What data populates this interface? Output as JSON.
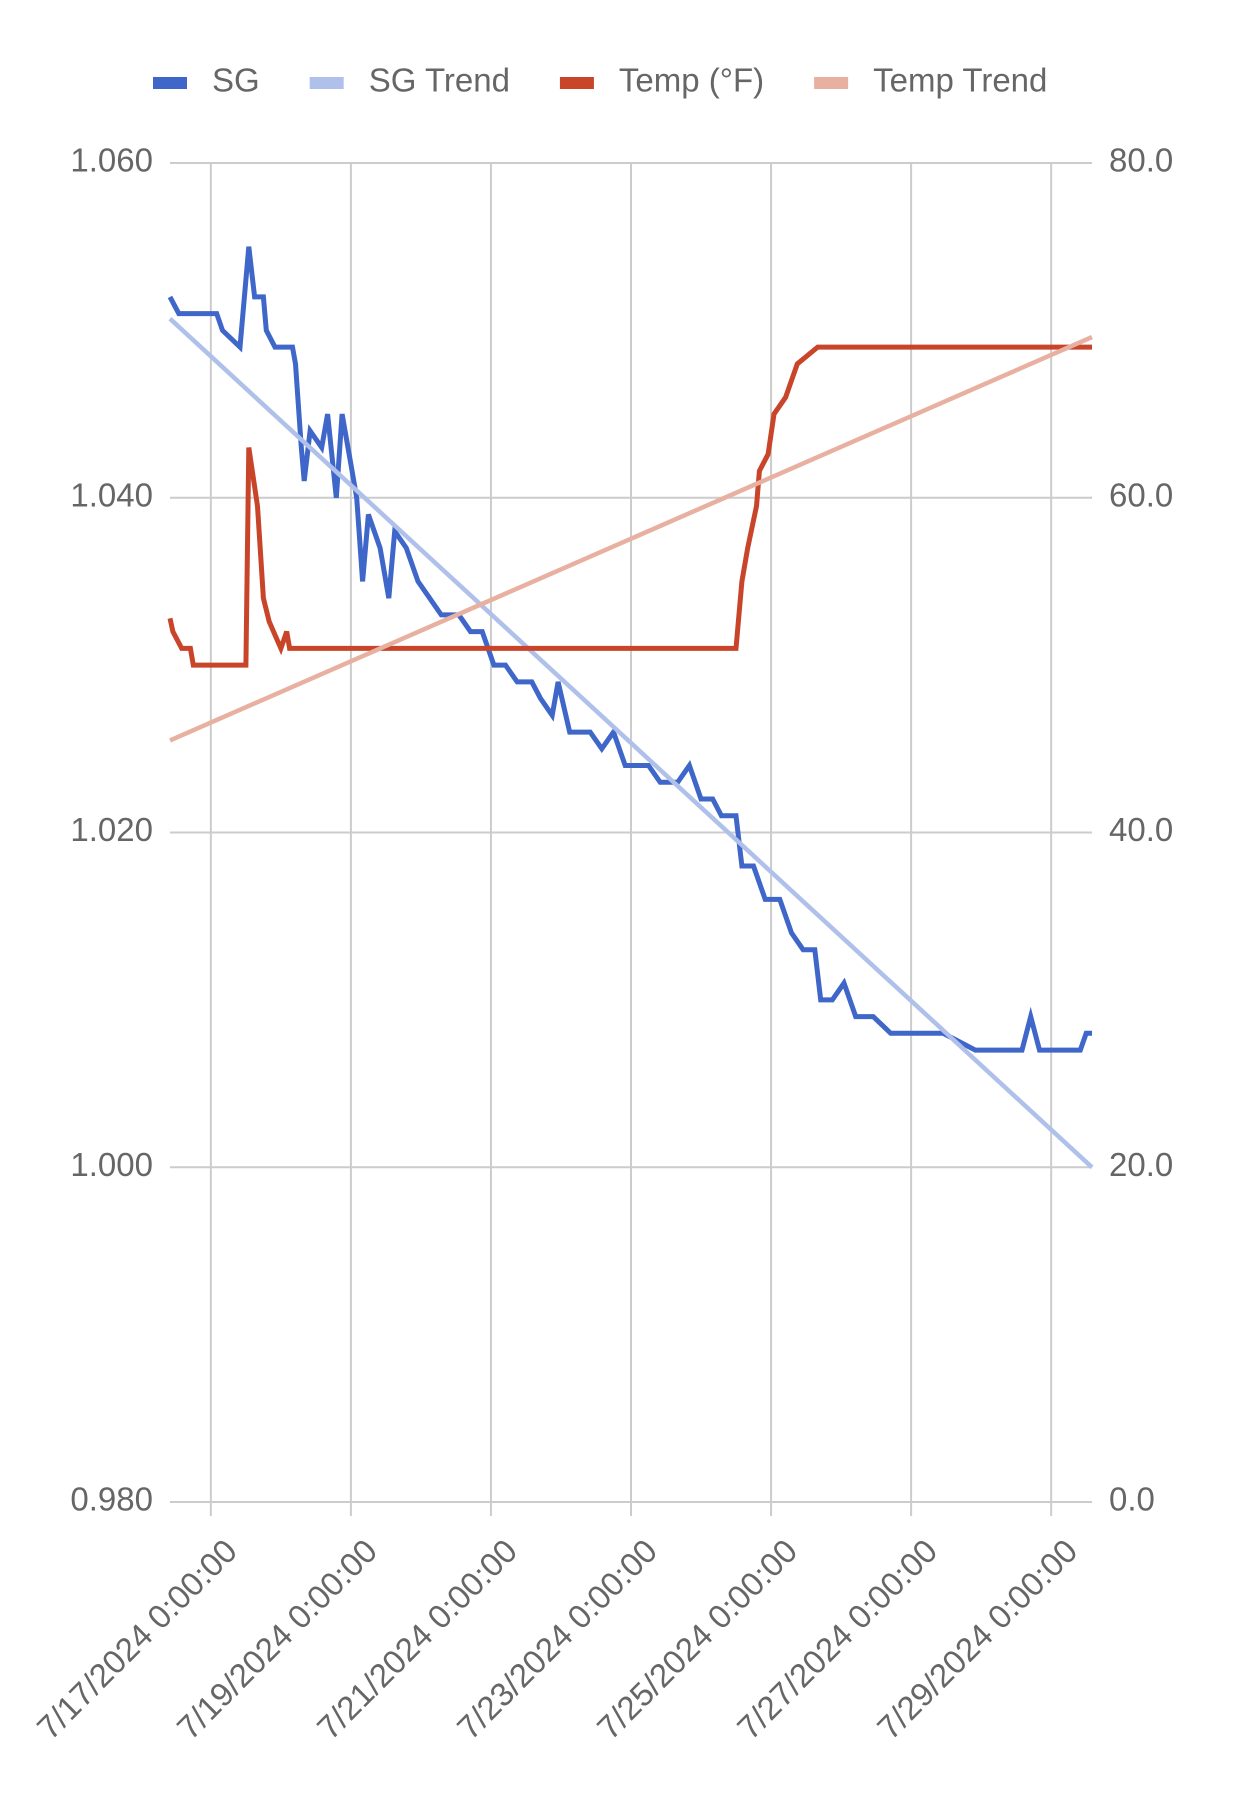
{
  "chart_data": {
    "type": "line",
    "xlim": [
      "7/16/2024 10:00:00",
      "7/29/2024 14:00:00"
    ],
    "xticks": [
      "7/17/2024 0:00:00",
      "7/19/2024 0:00:00",
      "7/21/2024 0:00:00",
      "7/23/2024 0:00:00",
      "7/25/2024 0:00:00",
      "7/27/2024 0:00:00",
      "7/29/2024 0:00:00"
    ],
    "ylim": [
      0.98,
      1.06
    ],
    "yticks": [
      {
        "value": 0.98,
        "label": "0.980"
      },
      {
        "value": 1.0,
        "label": "1.000"
      },
      {
        "value": 1.02,
        "label": "1.020"
      },
      {
        "value": 1.04,
        "label": "1.040"
      },
      {
        "value": 1.06,
        "label": "1.060"
      }
    ],
    "y2lim": [
      0,
      80
    ],
    "y2ticks": [
      {
        "value": 0,
        "label": "0.0"
      },
      {
        "value": 20,
        "label": "20.0"
      },
      {
        "value": 40,
        "label": "40.0"
      },
      {
        "value": 60,
        "label": "60.0"
      },
      {
        "value": 80,
        "label": "80.0"
      }
    ],
    "grid": true,
    "legend": "top",
    "series": [
      {
        "name": "SG",
        "color": "#3f66c9",
        "axis": "y",
        "x": [
          "7/16/2024 10:00:00",
          "7/16/2024 13:00:00",
          "7/17/2024 2:00:00",
          "7/17/2024 4:00:00",
          "7/17/2024 10:00:00",
          "7/17/2024 13:00:00",
          "7/17/2024 15:00:00",
          "7/17/2024 18:00:00",
          "7/17/2024 19:00:00",
          "7/17/2024 22:00:00",
          "7/18/2024 4:00:00",
          "7/18/2024 5:00:00",
          "7/18/2024 7:00:00",
          "7/18/2024 8:00:00",
          "7/18/2024 10:00:00",
          "7/18/2024 14:00:00",
          "7/18/2024 16:00:00",
          "7/18/2024 19:00:00",
          "7/18/2024 21:00:00",
          "7/19/2024 0:00:00",
          "7/19/2024 2:00:00",
          "7/19/2024 4:00:00",
          "7/19/2024 6:00:00",
          "7/19/2024 10:00:00",
          "7/19/2024 13:00:00",
          "7/19/2024 15:00:00",
          "7/19/2024 19:00:00",
          "7/19/2024 23:00:00",
          "7/20/2024 3:00:00",
          "7/20/2024 7:00:00",
          "7/20/2024 13:00:00",
          "7/20/2024 17:00:00",
          "7/20/2024 21:00:00",
          "7/21/2024 1:00:00",
          "7/21/2024 5:00:00",
          "7/21/2024 9:00:00",
          "7/21/2024 14:00:00",
          "7/21/2024 17:00:00",
          "7/21/2024 21:00:00",
          "7/21/2024 23:00:00",
          "7/22/2024 3:00:00",
          "7/22/2024 7:00:00",
          "7/22/2024 10:00:00",
          "7/22/2024 14:00:00",
          "7/22/2024 18:00:00",
          "7/22/2024 22:00:00",
          "7/23/2024 2:00:00",
          "7/23/2024 6:00:00",
          "7/23/2024 10:00:00",
          "7/23/2024 16:00:00",
          "7/23/2024 20:00:00",
          "7/24/2024 0:00:00",
          "7/24/2024 4:00:00",
          "7/24/2024 7:00:00",
          "7/24/2024 12:00:00",
          "7/24/2024 14:00:00",
          "7/24/2024 18:00:00",
          "7/24/2024 22:00:00",
          "7/25/2024 3:00:00",
          "7/25/2024 7:00:00",
          "7/25/2024 11:00:00",
          "7/25/2024 15:00:00",
          "7/25/2024 17:00:00",
          "7/25/2024 21:00:00",
          "7/26/2024 1:00:00",
          "7/26/2024 5:00:00",
          "7/26/2024 11:00:00",
          "7/26/2024 17:00:00",
          "7/26/2024 23:00:00",
          "7/27/2024 11:00:00",
          "7/27/2024 22:00:00",
          "7/28/2024 14:00:00",
          "7/28/2024 17:00:00",
          "7/28/2024 20:00:00",
          "7/29/2024 10:00:00",
          "7/29/2024 12:00:00",
          "7/29/2024 14:00:00"
        ],
        "values": [
          1.052,
          1.051,
          1.051,
          1.05,
          1.049,
          1.055,
          1.052,
          1.052,
          1.05,
          1.049,
          1.049,
          1.048,
          1.043,
          1.041,
          1.044,
          1.043,
          1.045,
          1.04,
          1.045,
          1.042,
          1.04,
          1.035,
          1.039,
          1.037,
          1.034,
          1.038,
          1.037,
          1.035,
          1.034,
          1.033,
          1.033,
          1.032,
          1.032,
          1.03,
          1.03,
          1.029,
          1.029,
          1.028,
          1.027,
          1.029,
          1.026,
          1.026,
          1.026,
          1.025,
          1.026,
          1.024,
          1.024,
          1.024,
          1.023,
          1.023,
          1.024,
          1.022,
          1.022,
          1.021,
          1.021,
          1.018,
          1.018,
          1.016,
          1.016,
          1.014,
          1.013,
          1.013,
          1.01,
          1.01,
          1.011,
          1.009,
          1.009,
          1.008,
          1.008,
          1.008,
          1.007,
          1.007,
          1.009,
          1.007,
          1.007,
          1.008,
          1.008
        ]
      },
      {
        "name": "SG Trend",
        "color": "#afc0ea",
        "axis": "y",
        "x": [
          "7/16/2024 10:00:00",
          "7/29/2024 14:00:00"
        ],
        "values": [
          1.0507,
          1.0
        ]
      },
      {
        "name": "Temp (°F)",
        "color": "#c9452a",
        "axis": "y2",
        "x": [
          "7/16/2024 10:00:00",
          "7/16/2024 11:00:00",
          "7/16/2024 14:00:00",
          "7/16/2024 17:00:00",
          "7/16/2024 18:00:00",
          "7/17/2024 12:00:00",
          "7/17/2024 13:00:00",
          "7/17/2024 16:00:00",
          "7/17/2024 18:00:00",
          "7/17/2024 20:00:00",
          "7/17/2024 22:00:00",
          "7/18/2024 0:00:00",
          "7/18/2024 2:00:00",
          "7/18/2024 3:00:00",
          "7/24/2024 12:00:00",
          "7/24/2024 14:00:00",
          "7/24/2024 16:00:00",
          "7/24/2024 19:00:00",
          "7/24/2024 20:00:00",
          "7/24/2024 23:00:00",
          "7/25/2024 1:00:00",
          "7/25/2024 5:00:00",
          "7/25/2024 9:00:00",
          "7/25/2024 16:00:00",
          "7/29/2024 14:00:00"
        ],
        "values": [
          52.8,
          52,
          51,
          51,
          50,
          50,
          63,
          59.5,
          54,
          52.6,
          51.8,
          51,
          52,
          51,
          51,
          55,
          57,
          59.5,
          61.6,
          62.6,
          65,
          66,
          68,
          69,
          69
        ]
      },
      {
        "name": "Temp Trend",
        "color": "#e8b0a1",
        "axis": "y2",
        "x": [
          "7/16/2024 10:00:00",
          "7/29/2024 14:00:00"
        ],
        "values": [
          45.5,
          69.6
        ]
      }
    ]
  }
}
